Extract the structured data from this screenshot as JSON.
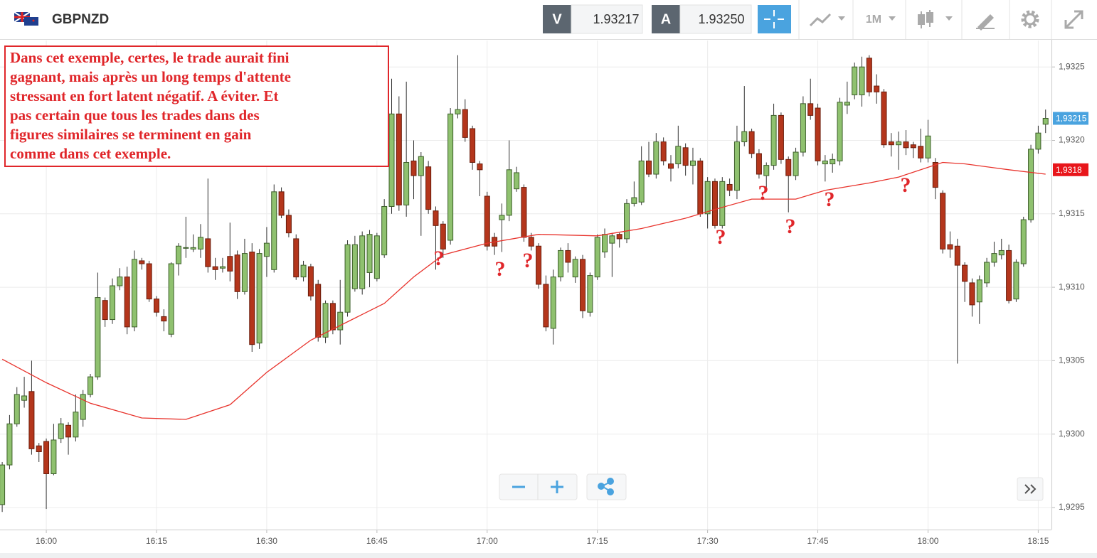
{
  "header": {
    "symbol": "GBPNZD",
    "sell_label": "V",
    "sell_price": "1.93217",
    "buy_label": "A",
    "buy_price": "1.93250",
    "timeframe": "1M"
  },
  "chart_data": {
    "type": "candlestick",
    "ylim": [
      1.92935,
      1.93268
    ],
    "yticks": [
      {
        "value": 1.9295,
        "label": "1,9295"
      },
      {
        "value": 1.93,
        "label": "1,9300"
      },
      {
        "value": 1.9305,
        "label": "1,9305"
      },
      {
        "value": 1.931,
        "label": "1,9310"
      },
      {
        "value": 1.9315,
        "label": "1,9315"
      },
      {
        "value": 1.932,
        "label": "1,9320"
      },
      {
        "value": 1.9325,
        "label": "1,9325"
      }
    ],
    "xlim": [
      -0.3,
      142.8
    ],
    "xticks": [
      {
        "value": 6,
        "label": "16:00"
      },
      {
        "value": 21,
        "label": "16:15"
      },
      {
        "value": 36,
        "label": "16:30"
      },
      {
        "value": 51,
        "label": "16:45"
      },
      {
        "value": 66,
        "label": "17:00"
      },
      {
        "value": 81,
        "label": "17:15"
      },
      {
        "value": 96,
        "label": "17:30"
      },
      {
        "value": 111,
        "label": "17:45"
      },
      {
        "value": 126,
        "label": "18:00"
      },
      {
        "value": 141,
        "label": "18:15"
      }
    ],
    "grid": true,
    "up_color": "#8fc16f",
    "down_color": "#b4361c",
    "candles": [
      [
        1.92952,
        1.92981,
        1.92947,
        1.92979
      ],
      [
        1.92979,
        1.93013,
        1.92976,
        1.93007
      ],
      [
        1.93007,
        1.93032,
        1.93005,
        1.93027
      ],
      [
        1.93023,
        1.93039,
        1.93018,
        1.93026
      ],
      [
        1.93029,
        1.9305,
        1.92986,
        1.9299
      ],
      [
        1.92992,
        1.92994,
        1.92981,
        1.92988
      ],
      [
        1.92995,
        1.92997,
        1.92949,
        1.92973
      ],
      [
        1.92973,
        1.93007,
        1.92972,
        1.92996
      ],
      [
        1.92997,
        1.93011,
        1.92994,
        1.93007
      ],
      [
        1.93006,
        1.93008,
        1.92986,
        1.92998
      ],
      [
        1.92998,
        1.93027,
        1.92995,
        1.93015
      ],
      [
        1.9301,
        1.9303,
        1.93005,
        1.93027
      ],
      [
        1.93027,
        1.93041,
        1.93025,
        1.93039
      ],
      [
        1.93039,
        1.9311,
        1.93037,
        1.93093
      ],
      [
        1.93091,
        1.93093,
        1.93073,
        1.93078
      ],
      [
        1.93078,
        1.93106,
        1.93075,
        1.93101
      ],
      [
        1.93101,
        1.93113,
        1.93098,
        1.93107
      ],
      [
        1.93107,
        1.93114,
        1.93068,
        1.93073
      ],
      [
        1.93073,
        1.93125,
        1.9307,
        1.93119
      ],
      [
        1.93118,
        1.9312,
        1.93112,
        1.93116
      ],
      [
        1.93116,
        1.93118,
        1.9309,
        1.93092
      ],
      [
        1.93092,
        1.93094,
        1.9308,
        1.93083
      ],
      [
        1.9308,
        1.93085,
        1.9307,
        1.93077
      ],
      [
        1.93068,
        1.93117,
        1.93066,
        1.93116
      ],
      [
        1.93116,
        1.9313,
        1.93108,
        1.93128
      ],
      [
        1.93127,
        1.93148,
        1.9312,
        1.93127
      ],
      [
        1.93126,
        1.93136,
        1.93124,
        1.93127
      ],
      [
        1.93126,
        1.93143,
        1.9312,
        1.93134
      ],
      [
        1.93133,
        1.93174,
        1.9311,
        1.93114
      ],
      [
        1.93114,
        1.9312,
        1.93105,
        1.93112
      ],
      [
        1.93113,
        1.9312,
        1.9311,
        1.93114
      ],
      [
        1.93121,
        1.93144,
        1.93104,
        1.93111
      ],
      [
        1.93122,
        1.93125,
        1.93092,
        1.93097
      ],
      [
        1.93097,
        1.93133,
        1.93095,
        1.93123
      ],
      [
        1.93124,
        1.9313,
        1.93056,
        1.93061
      ],
      [
        1.93062,
        1.93126,
        1.93058,
        1.93123
      ],
      [
        1.93121,
        1.93141,
        1.93107,
        1.9313
      ],
      [
        1.93112,
        1.9317,
        1.9311,
        1.93165
      ],
      [
        1.93165,
        1.93168,
        1.93147,
        1.93149
      ],
      [
        1.93149,
        1.93153,
        1.93134,
        1.93137
      ],
      [
        1.93133,
        1.93136,
        1.93105,
        1.93107
      ],
      [
        1.93107,
        1.93118,
        1.93104,
        1.93115
      ],
      [
        1.93114,
        1.93116,
        1.93091,
        1.93094
      ],
      [
        1.93102,
        1.93105,
        1.93063,
        1.93066
      ],
      [
        1.93066,
        1.93091,
        1.93062,
        1.93089
      ],
      [
        1.93089,
        1.93091,
        1.93068,
        1.93071
      ],
      [
        1.93071,
        1.93105,
        1.93061,
        1.93083
      ],
      [
        1.93083,
        1.93132,
        1.9308,
        1.93129
      ],
      [
        1.93099,
        1.93135,
        1.93097,
        1.93129
      ],
      [
        1.93099,
        1.93138,
        1.93095,
        1.93135
      ],
      [
        1.9311,
        1.93139,
        1.931,
        1.93136
      ],
      [
        1.93106,
        1.93137,
        1.93104,
        1.93135
      ],
      [
        1.93122,
        1.9316,
        1.9312,
        1.93155
      ],
      [
        1.93155,
        1.93242,
        1.9315,
        1.93218
      ],
      [
        1.93218,
        1.9323,
        1.93152,
        1.93156
      ],
      [
        1.93156,
        1.9324,
        1.93148,
        1.93185
      ],
      [
        1.93186,
        1.932,
        1.9316,
        1.93176
      ],
      [
        1.93176,
        1.93192,
        1.93135,
        1.93189
      ],
      [
        1.93182,
        1.93186,
        1.9315,
        1.93153
      ],
      [
        1.93152,
        1.93155,
        1.93112,
        1.93142
      ],
      [
        1.93143,
        1.93145,
        1.9312,
        1.93126
      ],
      [
        1.93132,
        1.93222,
        1.93129,
        1.93218
      ],
      [
        1.93218,
        1.93258,
        1.93215,
        1.93221
      ],
      [
        1.93221,
        1.93228,
        1.93199,
        1.93202
      ],
      [
        1.93208,
        1.9321,
        1.9318,
        1.93185
      ],
      [
        1.93184,
        1.93186,
        1.93162,
        1.9318
      ],
      [
        1.93162,
        1.93165,
        1.93125,
        1.93128
      ],
      [
        1.93134,
        1.93137,
        1.93122,
        1.93128
      ],
      [
        1.93146,
        1.93157,
        1.93124,
        1.93149
      ],
      [
        1.93149,
        1.932,
        1.93145,
        1.9318
      ],
      [
        1.93167,
        1.93182,
        1.93165,
        1.93178
      ],
      [
        1.93168,
        1.9317,
        1.93131,
        1.93134
      ],
      [
        1.93134,
        1.93137,
        1.93125,
        1.93128
      ],
      [
        1.93128,
        1.9313,
        1.93099,
        1.93102
      ],
      [
        1.93102,
        1.93108,
        1.9307,
        1.93073
      ],
      [
        1.93072,
        1.93112,
        1.93061,
        1.93107
      ],
      [
        1.93107,
        1.93127,
        1.93104,
        1.93125
      ],
      [
        1.93125,
        1.9313,
        1.9311,
        1.93117
      ],
      [
        1.93107,
        1.93121,
        1.93103,
        1.93119
      ],
      [
        1.93119,
        1.93122,
        1.93079,
        1.93084
      ],
      [
        1.93083,
        1.9311,
        1.9308,
        1.93108
      ],
      [
        1.93107,
        1.93136,
        1.93105,
        1.93134
      ],
      [
        1.93124,
        1.9314,
        1.9312,
        1.93136
      ],
      [
        1.9313,
        1.93137,
        1.93107,
        1.93135
      ],
      [
        1.93136,
        1.93137,
        1.93127,
        1.93133
      ],
      [
        1.93133,
        1.9316,
        1.9313,
        1.93157
      ],
      [
        1.93157,
        1.93172,
        1.93155,
        1.93161
      ],
      [
        1.93158,
        1.93196,
        1.93156,
        1.93186
      ],
      [
        1.93186,
        1.93199,
        1.93175,
        1.93177
      ],
      [
        1.93177,
        1.93205,
        1.93174,
        1.93199
      ],
      [
        1.93199,
        1.93202,
        1.93183,
        1.93186
      ],
      [
        1.93184,
        1.9319,
        1.93172,
        1.93181
      ],
      [
        1.93184,
        1.9321,
        1.93181,
        1.93196
      ],
      [
        1.93195,
        1.93198,
        1.93176,
        1.93183
      ],
      [
        1.93183,
        1.93195,
        1.9317,
        1.93186
      ],
      [
        1.93186,
        1.93188,
        1.93148,
        1.9315
      ],
      [
        1.9315,
        1.93175,
        1.9314,
        1.93172
      ],
      [
        1.93172,
        1.93174,
        1.9314,
        1.93142
      ],
      [
        1.93142,
        1.93175,
        1.9314,
        1.93172
      ],
      [
        1.9317,
        1.93174,
        1.93162,
        1.93166
      ],
      [
        1.93166,
        1.9321,
        1.9316,
        1.93199
      ],
      [
        1.93199,
        1.93237,
        1.93196,
        1.93206
      ],
      [
        1.93206,
        1.93208,
        1.93188,
        1.93191
      ],
      [
        1.93191,
        1.93194,
        1.93174,
        1.93177
      ],
      [
        1.93176,
        1.93185,
        1.93168,
        1.93183
      ],
      [
        1.93183,
        1.93225,
        1.9318,
        1.93217
      ],
      [
        1.93217,
        1.93219,
        1.93184,
        1.93187
      ],
      [
        1.93187,
        1.93189,
        1.93151,
        1.93176
      ],
      [
        1.93176,
        1.93195,
        1.93173,
        1.93192
      ],
      [
        1.93192,
        1.9323,
        1.93189,
        1.93225
      ],
      [
        1.93225,
        1.93242,
        1.93214,
        1.93217
      ],
      [
        1.93222,
        1.93225,
        1.93183,
        1.93186
      ],
      [
        1.93184,
        1.9319,
        1.93172,
        1.93186
      ],
      [
        1.93184,
        1.93191,
        1.93178,
        1.93187
      ],
      [
        1.93186,
        1.93229,
        1.93183,
        1.93226
      ],
      [
        1.93224,
        1.9324,
        1.93218,
        1.93226
      ],
      [
        1.93231,
        1.93253,
        1.93228,
        1.9325
      ],
      [
        1.93231,
        1.93257,
        1.93223,
        1.9325
      ],
      [
        1.93256,
        1.93258,
        1.9323,
        1.93233
      ],
      [
        1.93237,
        1.93245,
        1.93225,
        1.93233
      ],
      [
        1.93233,
        1.93235,
        1.93195,
        1.93197
      ],
      [
        1.93199,
        1.93205,
        1.93189,
        1.93197
      ],
      [
        1.93197,
        1.93206,
        1.9318,
        1.93199
      ],
      [
        1.93199,
        1.93207,
        1.9319,
        1.93195
      ],
      [
        1.93197,
        1.93199,
        1.93188,
        1.93195
      ],
      [
        1.93196,
        1.93208,
        1.93185,
        1.93188
      ],
      [
        1.93188,
        1.93214,
        1.93185,
        1.93203
      ],
      [
        1.93185,
        1.93188,
        1.9316,
        1.93168
      ],
      [
        1.93164,
        1.93166,
        1.93123,
        1.93126
      ],
      [
        1.93129,
        1.93138,
        1.9312,
        1.93126
      ],
      [
        1.93128,
        1.93133,
        1.93048,
        1.93115
      ],
      [
        1.93115,
        1.93117,
        1.9309,
        1.93104
      ],
      [
        1.93103,
        1.93106,
        1.9308,
        1.93088
      ],
      [
        1.9309,
        1.93108,
        1.93075,
        1.93105
      ],
      [
        1.93103,
        1.9312,
        1.931,
        1.93117
      ],
      [
        1.93117,
        1.93131,
        1.93114,
        1.93123
      ],
      [
        1.93122,
        1.93133,
        1.93119,
        1.93125
      ],
      [
        1.93125,
        1.93129,
        1.93089,
        1.93091
      ],
      [
        1.93092,
        1.93119,
        1.9309,
        1.93117
      ],
      [
        1.93116,
        1.93148,
        1.93114,
        1.93146
      ],
      [
        1.93146,
        1.93197,
        1.93144,
        1.93194
      ],
      [
        1.93194,
        1.9321,
        1.93191,
        1.93205
      ],
      [
        1.93211,
        1.93221,
        1.93205,
        1.93215
      ]
    ],
    "moving_average": {
      "color": "#e8332c",
      "x": [
        0,
        6,
        12,
        19,
        25,
        31,
        36,
        42,
        48,
        52,
        56,
        60,
        66,
        73,
        81,
        87,
        93,
        97,
        102,
        108,
        112,
        118,
        122,
        128,
        131,
        137,
        142
      ],
      "values": [
        1.93051,
        1.93035,
        1.93021,
        1.93011,
        1.9301,
        1.9302,
        1.93042,
        1.93064,
        1.93079,
        1.93089,
        1.93107,
        1.93122,
        1.9313,
        1.93136,
        1.93135,
        1.9314,
        1.93147,
        1.93153,
        1.9316,
        1.9316,
        1.93166,
        1.93171,
        1.93175,
        1.93185,
        1.93184,
        1.9318,
        1.93177
      ]
    },
    "price_tags": [
      {
        "value": 1.93215,
        "label": "1,93215",
        "color": "#4aa3df"
      },
      {
        "value": 1.9318,
        "label": "1,9318",
        "color": "#e8161b"
      }
    ],
    "annotation": [
      "Dans cet exemple, certes, le trade aurait fini",
      "gagnant, mais après un long temps d'attente",
      "stressant en fort latent négatif. A éviter. Et",
      "pas certain que tous les trades dans des",
      "figures similaires se terminent en gain",
      "comme dans cet exemple."
    ],
    "question_marks": [
      "?",
      "?",
      "?",
      "?",
      "?",
      "?",
      "?",
      "?"
    ]
  }
}
